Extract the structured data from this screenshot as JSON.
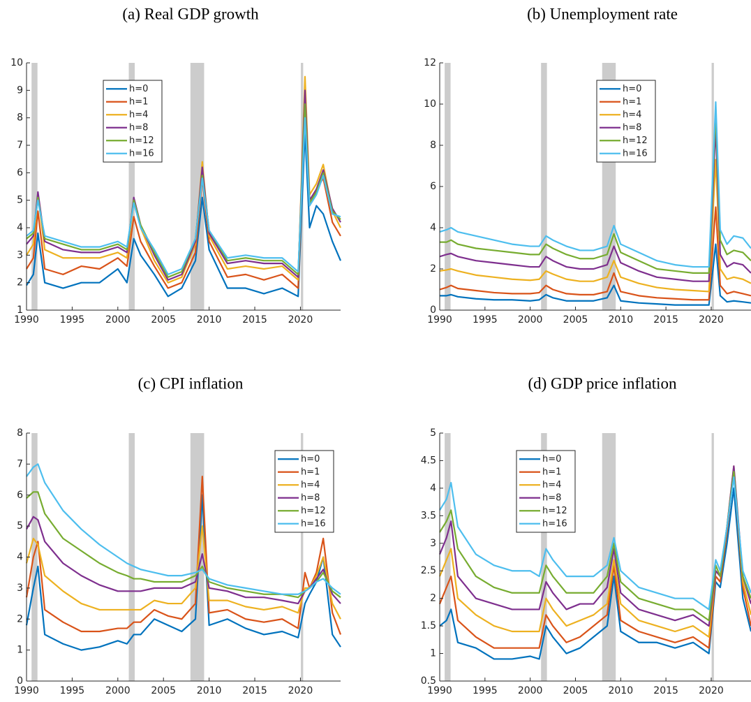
{
  "chart_data": [
    {
      "type": "line",
      "title": "(a) Real GDP growth",
      "legend_location": "upper left",
      "x": [
        1990,
        1990.75,
        1991.25,
        1992,
        1994,
        1996,
        1998,
        2000,
        2001,
        2001.75,
        2002.5,
        2004,
        2005.5,
        2007,
        2008.5,
        2009.25,
        2010,
        2012,
        2014,
        2016,
        2018,
        2019.75,
        2020.5,
        2021,
        2021.75,
        2022.5,
        2023.5,
        2024.4
      ],
      "xlim": [
        1990,
        2024.4
      ],
      "xticks": [
        1990,
        1995,
        2000,
        2005,
        2010,
        2015,
        2020
      ],
      "ylim": [
        1,
        10
      ],
      "yticks": [
        1,
        2,
        3,
        4,
        5,
        6,
        7,
        8,
        9,
        10
      ],
      "recession_bands": [
        [
          1990.55,
          1991.2
        ],
        [
          2001.2,
          2001.85
        ],
        [
          2007.95,
          2009.45
        ],
        [
          2020.05,
          2020.3
        ]
      ],
      "series": [
        {
          "name": "h=0",
          "color": "#0072BD",
          "values": [
            1.9,
            2.3,
            3.8,
            2.0,
            1.8,
            2.0,
            2.0,
            2.5,
            2.0,
            3.6,
            3.0,
            2.3,
            1.5,
            1.8,
            2.8,
            5.1,
            3.2,
            1.8,
            1.8,
            1.6,
            1.8,
            1.5,
            7.5,
            4.0,
            4.8,
            4.5,
            3.5,
            2.8
          ]
        },
        {
          "name": "h=1",
          "color": "#D95319",
          "values": [
            2.5,
            2.9,
            4.6,
            2.5,
            2.3,
            2.6,
            2.5,
            2.9,
            2.6,
            4.4,
            3.5,
            2.6,
            1.8,
            2.0,
            3.1,
            5.8,
            3.5,
            2.2,
            2.3,
            2.1,
            2.3,
            1.8,
            8.5,
            4.8,
            5.4,
            5.8,
            4.2,
            3.7
          ]
        },
        {
          "name": "h=4",
          "color": "#EDB120",
          "values": [
            3.0,
            3.4,
            5.2,
            3.2,
            2.9,
            2.9,
            2.9,
            3.1,
            2.9,
            5.0,
            4.0,
            2.8,
            2.0,
            2.2,
            3.4,
            6.4,
            3.7,
            2.5,
            2.6,
            2.5,
            2.6,
            2.1,
            9.5,
            5.2,
            5.6,
            6.3,
            4.6,
            4.0
          ]
        },
        {
          "name": "h=8",
          "color": "#7E2F8E",
          "values": [
            3.4,
            3.7,
            5.3,
            3.5,
            3.2,
            3.1,
            3.1,
            3.3,
            3.1,
            5.1,
            4.1,
            3.0,
            2.1,
            2.3,
            3.5,
            6.2,
            3.8,
            2.7,
            2.8,
            2.7,
            2.7,
            2.2,
            9.0,
            5.0,
            5.4,
            6.1,
            4.7,
            4.2
          ]
        },
        {
          "name": "h=12",
          "color": "#77AC30",
          "values": [
            3.6,
            3.8,
            5.1,
            3.6,
            3.4,
            3.2,
            3.2,
            3.4,
            3.2,
            5.0,
            4.1,
            3.1,
            2.2,
            2.4,
            3.6,
            5.9,
            3.9,
            2.8,
            2.9,
            2.8,
            2.8,
            2.3,
            8.5,
            4.9,
            5.3,
            6.0,
            4.6,
            4.3
          ]
        },
        {
          "name": "h=16",
          "color": "#4DBEEE",
          "values": [
            3.7,
            3.9,
            5.0,
            3.7,
            3.5,
            3.3,
            3.3,
            3.5,
            3.3,
            4.9,
            4.0,
            3.2,
            2.3,
            2.5,
            3.6,
            5.8,
            3.9,
            2.9,
            3.0,
            2.9,
            2.9,
            2.4,
            8.0,
            4.8,
            5.2,
            5.9,
            4.5,
            4.4
          ]
        }
      ]
    },
    {
      "type": "line",
      "title": "(b) Unemployment rate",
      "legend_location": "upper center",
      "x": [
        1990,
        1990.75,
        1991.25,
        1992,
        1994,
        1996,
        1998,
        2000,
        2001,
        2001.75,
        2002.5,
        2004,
        2005.5,
        2007,
        2008.5,
        2009.25,
        2010,
        2012,
        2014,
        2016,
        2018,
        2019.75,
        2020.5,
        2021,
        2021.75,
        2022.5,
        2023.5,
        2024.4
      ],
      "xlim": [
        1990,
        2024.4
      ],
      "xticks": [
        1990,
        1995,
        2000,
        2005,
        2010,
        2015,
        2020
      ],
      "ylim": [
        0,
        12
      ],
      "yticks": [
        0,
        2,
        4,
        6,
        8,
        10,
        12
      ],
      "recession_bands": [
        [
          1990.55,
          1991.2
        ],
        [
          2001.2,
          2001.85
        ],
        [
          2007.95,
          2009.45
        ],
        [
          2020.05,
          2020.3
        ]
      ],
      "series": [
        {
          "name": "h=0",
          "color": "#0072BD",
          "values": [
            0.7,
            0.7,
            0.75,
            0.65,
            0.55,
            0.5,
            0.5,
            0.45,
            0.5,
            0.75,
            0.6,
            0.45,
            0.45,
            0.45,
            0.6,
            1.2,
            0.45,
            0.35,
            0.3,
            0.25,
            0.25,
            0.25,
            3.2,
            0.7,
            0.4,
            0.45,
            0.4,
            0.35
          ]
        },
        {
          "name": "h=1",
          "color": "#D95319",
          "values": [
            1.0,
            1.1,
            1.2,
            1.05,
            0.95,
            0.85,
            0.8,
            0.8,
            0.85,
            1.2,
            1.0,
            0.8,
            0.75,
            0.75,
            0.9,
            1.8,
            0.9,
            0.7,
            0.6,
            0.55,
            0.5,
            0.5,
            5.0,
            1.2,
            0.8,
            0.9,
            0.8,
            0.7
          ]
        },
        {
          "name": "h=4",
          "color": "#EDB120",
          "values": [
            1.9,
            1.95,
            2.0,
            1.9,
            1.7,
            1.6,
            1.5,
            1.45,
            1.5,
            1.9,
            1.75,
            1.5,
            1.4,
            1.4,
            1.6,
            2.4,
            1.6,
            1.3,
            1.1,
            1.0,
            0.95,
            0.9,
            7.3,
            2.0,
            1.5,
            1.6,
            1.5,
            1.3
          ]
        },
        {
          "name": "h=8",
          "color": "#7E2F8E",
          "values": [
            2.6,
            2.7,
            2.75,
            2.6,
            2.4,
            2.3,
            2.2,
            2.1,
            2.1,
            2.6,
            2.4,
            2.1,
            2.0,
            2.0,
            2.2,
            3.1,
            2.3,
            1.9,
            1.6,
            1.5,
            1.4,
            1.4,
            8.9,
            2.7,
            2.1,
            2.3,
            2.2,
            1.8
          ]
        },
        {
          "name": "h=12",
          "color": "#77AC30",
          "values": [
            3.3,
            3.3,
            3.4,
            3.2,
            3.0,
            2.9,
            2.8,
            2.7,
            2.7,
            3.2,
            3.0,
            2.7,
            2.5,
            2.5,
            2.7,
            3.7,
            2.8,
            2.4,
            2.0,
            1.9,
            1.8,
            1.8,
            9.6,
            3.4,
            2.7,
            2.9,
            2.8,
            2.4
          ]
        },
        {
          "name": "h=16",
          "color": "#4DBEEE",
          "values": [
            3.8,
            3.9,
            4.0,
            3.8,
            3.6,
            3.4,
            3.2,
            3.1,
            3.1,
            3.6,
            3.4,
            3.1,
            2.9,
            2.9,
            3.1,
            4.1,
            3.2,
            2.8,
            2.4,
            2.2,
            2.1,
            2.1,
            10.1,
            3.9,
            3.2,
            3.6,
            3.5,
            3.0
          ]
        }
      ]
    },
    {
      "type": "line",
      "title": "(c) CPI inflation",
      "legend_location": "upper right",
      "x": [
        1990,
        1990.75,
        1991.25,
        1992,
        1994,
        1996,
        1998,
        2000,
        2001,
        2001.75,
        2002.5,
        2004,
        2005.5,
        2007,
        2008.5,
        2009.25,
        2010,
        2012,
        2014,
        2016,
        2018,
        2019.75,
        2020.5,
        2021,
        2021.75,
        2022.5,
        2023.5,
        2024.4
      ],
      "xlim": [
        1990,
        2024.4
      ],
      "xticks": [
        1990,
        1995,
        2000,
        2005,
        2010,
        2015,
        2020
      ],
      "ylim": [
        0,
        8
      ],
      "yticks": [
        0,
        1,
        2,
        3,
        4,
        5,
        6,
        7,
        8
      ],
      "recession_bands": [
        [
          1990.55,
          1991.2
        ],
        [
          2001.2,
          2001.85
        ],
        [
          2007.95,
          2009.45
        ],
        [
          2020.05,
          2020.3
        ]
      ],
      "series": [
        {
          "name": "h=0",
          "color": "#0072BD",
          "values": [
            1.8,
            3.0,
            3.7,
            1.5,
            1.2,
            1.0,
            1.1,
            1.3,
            1.2,
            1.5,
            1.5,
            2.0,
            1.8,
            1.6,
            2.0,
            6.0,
            1.8,
            2.0,
            1.7,
            1.5,
            1.6,
            1.4,
            2.5,
            2.8,
            3.2,
            4.0,
            1.5,
            1.1
          ]
        },
        {
          "name": "h=1",
          "color": "#D95319",
          "values": [
            2.7,
            4.0,
            4.5,
            2.3,
            1.9,
            1.6,
            1.6,
            1.7,
            1.7,
            1.9,
            1.9,
            2.3,
            2.1,
            2.0,
            2.5,
            6.6,
            2.2,
            2.3,
            2.0,
            1.9,
            2.0,
            1.7,
            3.5,
            3.0,
            3.5,
            4.6,
            2.2,
            1.5
          ]
        },
        {
          "name": "h=4",
          "color": "#EDB120",
          "values": [
            3.8,
            4.6,
            4.4,
            3.4,
            2.9,
            2.5,
            2.3,
            2.3,
            2.3,
            2.3,
            2.3,
            2.6,
            2.5,
            2.5,
            3.0,
            5.0,
            2.6,
            2.6,
            2.4,
            2.3,
            2.4,
            2.2,
            3.0,
            3.0,
            3.4,
            4.0,
            2.5,
            2.0
          ]
        },
        {
          "name": "h=8",
          "color": "#7E2F8E",
          "values": [
            4.9,
            5.3,
            5.2,
            4.5,
            3.8,
            3.4,
            3.1,
            2.9,
            2.9,
            2.9,
            2.9,
            3.0,
            3.0,
            3.0,
            3.2,
            4.1,
            3.0,
            2.9,
            2.7,
            2.7,
            2.6,
            2.5,
            2.9,
            3.0,
            3.3,
            3.6,
            2.8,
            2.5
          ]
        },
        {
          "name": "h=12",
          "color": "#77AC30",
          "values": [
            5.9,
            6.1,
            6.1,
            5.4,
            4.6,
            4.2,
            3.8,
            3.5,
            3.4,
            3.3,
            3.3,
            3.2,
            3.2,
            3.2,
            3.4,
            3.7,
            3.2,
            3.0,
            2.9,
            2.8,
            2.8,
            2.7,
            2.9,
            3.0,
            3.2,
            3.5,
            2.9,
            2.7
          ]
        },
        {
          "name": "h=16",
          "color": "#4DBEEE",
          "values": [
            6.6,
            6.9,
            7.0,
            6.4,
            5.5,
            4.9,
            4.4,
            4.0,
            3.8,
            3.7,
            3.6,
            3.5,
            3.4,
            3.4,
            3.5,
            3.6,
            3.3,
            3.1,
            3.0,
            2.9,
            2.8,
            2.8,
            2.9,
            3.0,
            3.2,
            3.3,
            3.0,
            2.8
          ]
        }
      ]
    },
    {
      "type": "line",
      "title": "(d) GDP price inflation",
      "legend_location": "upper left",
      "x": [
        1990,
        1990.75,
        1991.25,
        1992,
        1994,
        1996,
        1998,
        2000,
        2001,
        2001.75,
        2002.5,
        2004,
        2005.5,
        2007,
        2008.5,
        2009.25,
        2010,
        2012,
        2014,
        2016,
        2018,
        2019.75,
        2020.5,
        2021,
        2021.75,
        2022.5,
        2023.5,
        2024.4
      ],
      "xlim": [
        1990,
        2024.4
      ],
      "xticks": [
        1990,
        1995,
        2000,
        2005,
        2010,
        2015,
        2020
      ],
      "ylim": [
        0.5,
        5
      ],
      "yticks": [
        0.5,
        1,
        1.5,
        2,
        2.5,
        3,
        3.5,
        4,
        4.5,
        5
      ],
      "recession_bands": [
        [
          1990.55,
          1991.2
        ],
        [
          2001.2,
          2001.85
        ],
        [
          2007.95,
          2009.45
        ],
        [
          2020.05,
          2020.3
        ]
      ],
      "series": [
        {
          "name": "h=0",
          "color": "#0072BD",
          "values": [
            1.5,
            1.6,
            1.8,
            1.2,
            1.1,
            0.9,
            0.9,
            0.95,
            0.9,
            1.5,
            1.3,
            1.0,
            1.1,
            1.3,
            1.5,
            2.4,
            1.4,
            1.2,
            1.2,
            1.1,
            1.2,
            1.0,
            2.3,
            2.2,
            3.0,
            4.0,
            2.0,
            1.4
          ]
        },
        {
          "name": "h=1",
          "color": "#D95319",
          "values": [
            1.9,
            2.2,
            2.4,
            1.6,
            1.3,
            1.1,
            1.1,
            1.1,
            1.1,
            1.7,
            1.5,
            1.2,
            1.3,
            1.5,
            1.7,
            2.6,
            1.6,
            1.4,
            1.3,
            1.2,
            1.3,
            1.1,
            2.4,
            2.3,
            3.2,
            4.3,
            2.2,
            1.5
          ]
        },
        {
          "name": "h=4",
          "color": "#EDB120",
          "values": [
            2.4,
            2.7,
            2.9,
            2.0,
            1.7,
            1.5,
            1.4,
            1.4,
            1.4,
            2.0,
            1.8,
            1.5,
            1.6,
            1.7,
            1.9,
            2.7,
            1.9,
            1.6,
            1.5,
            1.4,
            1.5,
            1.3,
            2.5,
            2.4,
            3.3,
            4.4,
            2.3,
            1.7
          ]
        },
        {
          "name": "h=8",
          "color": "#7E2F8E",
          "values": [
            2.8,
            3.1,
            3.4,
            2.4,
            2.0,
            1.9,
            1.8,
            1.8,
            1.8,
            2.3,
            2.1,
            1.8,
            1.9,
            1.9,
            2.2,
            2.9,
            2.1,
            1.8,
            1.7,
            1.6,
            1.7,
            1.5,
            2.5,
            2.4,
            3.3,
            4.4,
            2.4,
            1.9
          ]
        },
        {
          "name": "h=12",
          "color": "#77AC30",
          "values": [
            3.2,
            3.4,
            3.6,
            2.9,
            2.4,
            2.2,
            2.1,
            2.1,
            2.1,
            2.6,
            2.4,
            2.1,
            2.1,
            2.1,
            2.4,
            3.0,
            2.3,
            2.0,
            1.9,
            1.8,
            1.8,
            1.6,
            2.6,
            2.4,
            3.3,
            4.3,
            2.4,
            2.0
          ]
        },
        {
          "name": "h=16",
          "color": "#4DBEEE",
          "values": [
            3.6,
            3.8,
            4.1,
            3.3,
            2.8,
            2.6,
            2.5,
            2.5,
            2.4,
            2.9,
            2.7,
            2.4,
            2.4,
            2.4,
            2.6,
            3.1,
            2.5,
            2.2,
            2.1,
            2.0,
            2.0,
            1.8,
            2.7,
            2.5,
            3.3,
            4.2,
            2.5,
            2.1
          ]
        }
      ]
    }
  ]
}
